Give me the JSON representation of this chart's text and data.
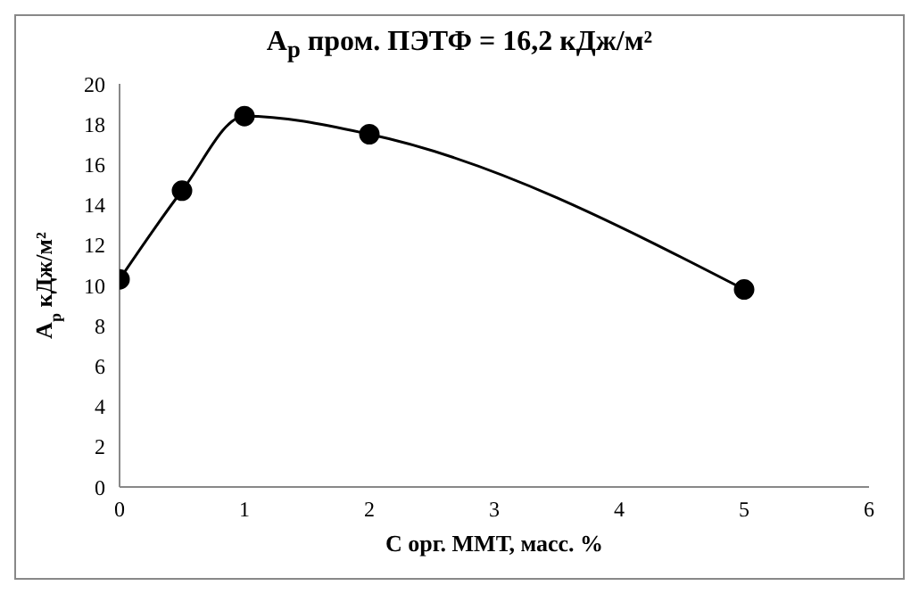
{
  "chart_data": {
    "type": "line",
    "title": "A$_{р}$ пром. ПЭТФ = 16,2 кДж/м²",
    "xlabel": "C орг. ММТ, масс. %",
    "ylabel": "A$_{р}$ кДж/м²",
    "x": [
      0,
      0.5,
      1,
      2,
      5
    ],
    "series": [
      {
        "color": "#000000",
        "values": [
          10.3,
          14.7,
          18.4,
          17.5,
          9.8
        ]
      }
    ],
    "xlim": [
      0,
      6
    ],
    "xticks": [
      0,
      1,
      2,
      3,
      4,
      5,
      6
    ],
    "ylim": [
      0,
      20
    ],
    "yticks": [
      0,
      2,
      4,
      6,
      8,
      10,
      12,
      14,
      16,
      18,
      20
    ],
    "marker": "circle",
    "line_style": "solid"
  }
}
